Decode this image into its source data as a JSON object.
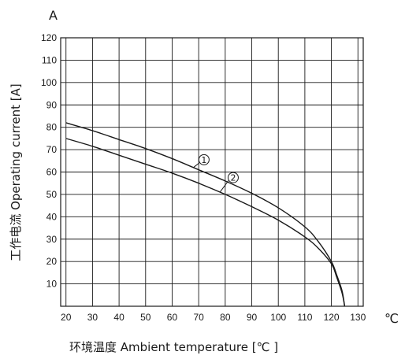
{
  "chart_data": {
    "type": "line",
    "y_unit_label": "A",
    "x_unit_label": "℃",
    "xlabel": "环境温度 Ambient temperature [℃ ]",
    "ylabel": "工作电流 Operating current [A]",
    "xlim": [
      18,
      132
    ],
    "ylim": [
      0,
      120
    ],
    "x_ticks": [
      20,
      30,
      40,
      50,
      60,
      70,
      80,
      90,
      100,
      110,
      120,
      130
    ],
    "y_ticks": [
      10,
      20,
      30,
      40,
      50,
      60,
      70,
      80,
      90,
      100,
      110,
      120
    ],
    "grid": true,
    "series": [
      {
        "name": "①",
        "x": [
          20,
          30,
          40,
          50,
          60,
          70,
          80,
          90,
          100,
          110,
          115,
          120,
          122,
          124,
          125
        ],
        "y": [
          82,
          78.5,
          74.5,
          70.5,
          66,
          61,
          56,
          50.5,
          44,
          35.5,
          29,
          20,
          14,
          7,
          0
        ]
      },
      {
        "name": "②",
        "x": [
          20,
          30,
          40,
          50,
          60,
          70,
          80,
          90,
          100,
          110,
          115,
          120,
          122,
          124,
          125
        ],
        "y": [
          75,
          71.5,
          67.5,
          63.5,
          59.5,
          55,
          50,
          44.5,
          38.5,
          31,
          26,
          19,
          13,
          6,
          0
        ]
      }
    ]
  }
}
